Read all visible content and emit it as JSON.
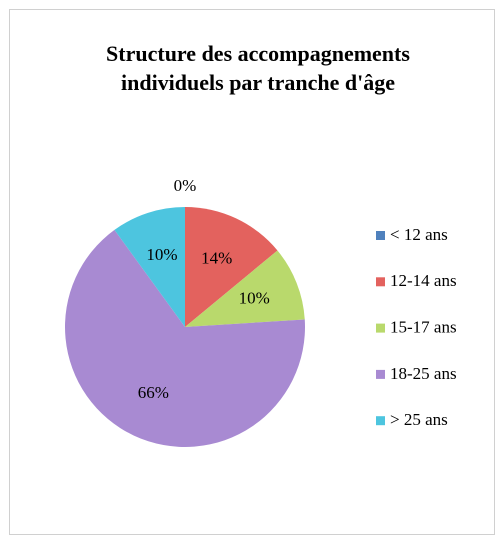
{
  "chart_data": {
    "type": "pie",
    "title": "Structure des accompagnements individuels par tranche d'âge",
    "categories": [
      "< 12 ans",
      "12-14 ans",
      "15-17 ans",
      "18-25 ans",
      "> 25 ans"
    ],
    "values": [
      0,
      14,
      10,
      66,
      10
    ],
    "value_labels": [
      "0%",
      "14%",
      "10%",
      "66%",
      "10%"
    ],
    "colors": [
      "#4f81bd",
      "#e3625e",
      "#b9d96c",
      "#a88ad2",
      "#4dc5df"
    ],
    "legend": "right"
  }
}
